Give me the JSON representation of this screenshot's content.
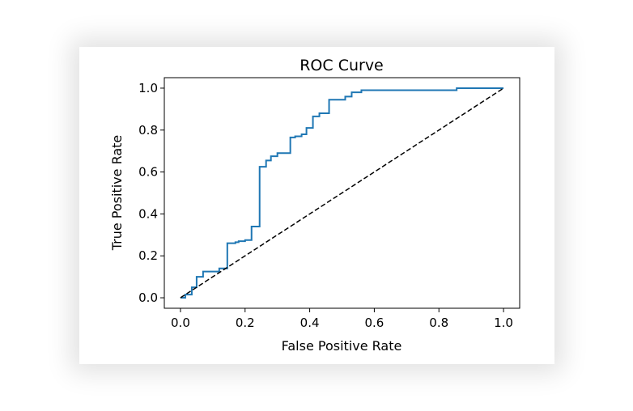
{
  "chart_data": {
    "type": "line",
    "title": "ROC Curve",
    "xlabel": "False Positive Rate",
    "ylabel": "True Positive Rate",
    "xlim": [
      -0.05,
      1.05
    ],
    "ylim": [
      -0.05,
      1.05
    ],
    "xticks": [
      0.0,
      0.2,
      0.4,
      0.6,
      0.8,
      1.0
    ],
    "yticks": [
      0.0,
      0.2,
      0.4,
      0.6,
      0.8,
      1.0
    ],
    "xtick_labels": [
      "0.0",
      "0.2",
      "0.4",
      "0.6",
      "0.8",
      "1.0"
    ],
    "ytick_labels": [
      "0.0",
      "0.2",
      "0.4",
      "0.6",
      "0.8",
      "1.0"
    ],
    "grid": false,
    "legend": "none",
    "series": [
      {
        "color": "#1f77b4",
        "style": "step",
        "x": [
          0.0,
          0.015,
          0.015,
          0.035,
          0.035,
          0.05,
          0.05,
          0.07,
          0.07,
          0.12,
          0.12,
          0.145,
          0.145,
          0.17,
          0.17,
          0.18,
          0.18,
          0.2,
          0.2,
          0.22,
          0.22,
          0.245,
          0.245,
          0.265,
          0.265,
          0.28,
          0.28,
          0.3,
          0.3,
          0.34,
          0.34,
          0.355,
          0.355,
          0.375,
          0.375,
          0.39,
          0.39,
          0.41,
          0.41,
          0.43,
          0.43,
          0.46,
          0.46,
          0.51,
          0.51,
          0.53,
          0.53,
          0.56,
          0.56,
          0.855,
          0.855,
          0.9,
          0.9,
          1.0
        ],
        "y": [
          0.0,
          0.0,
          0.015,
          0.015,
          0.05,
          0.05,
          0.1,
          0.1,
          0.125,
          0.125,
          0.14,
          0.14,
          0.26,
          0.26,
          0.265,
          0.265,
          0.27,
          0.27,
          0.275,
          0.275,
          0.34,
          0.34,
          0.625,
          0.625,
          0.655,
          0.655,
          0.675,
          0.675,
          0.69,
          0.69,
          0.765,
          0.765,
          0.77,
          0.77,
          0.78,
          0.78,
          0.81,
          0.81,
          0.865,
          0.865,
          0.88,
          0.88,
          0.945,
          0.945,
          0.96,
          0.96,
          0.98,
          0.98,
          0.99,
          0.99,
          1.0,
          1.0,
          1.0,
          1.0
        ]
      },
      {
        "color": "#000000",
        "style": "dashed",
        "x": [
          0.0,
          1.0
        ],
        "y": [
          0.0,
          1.0
        ]
      }
    ]
  }
}
